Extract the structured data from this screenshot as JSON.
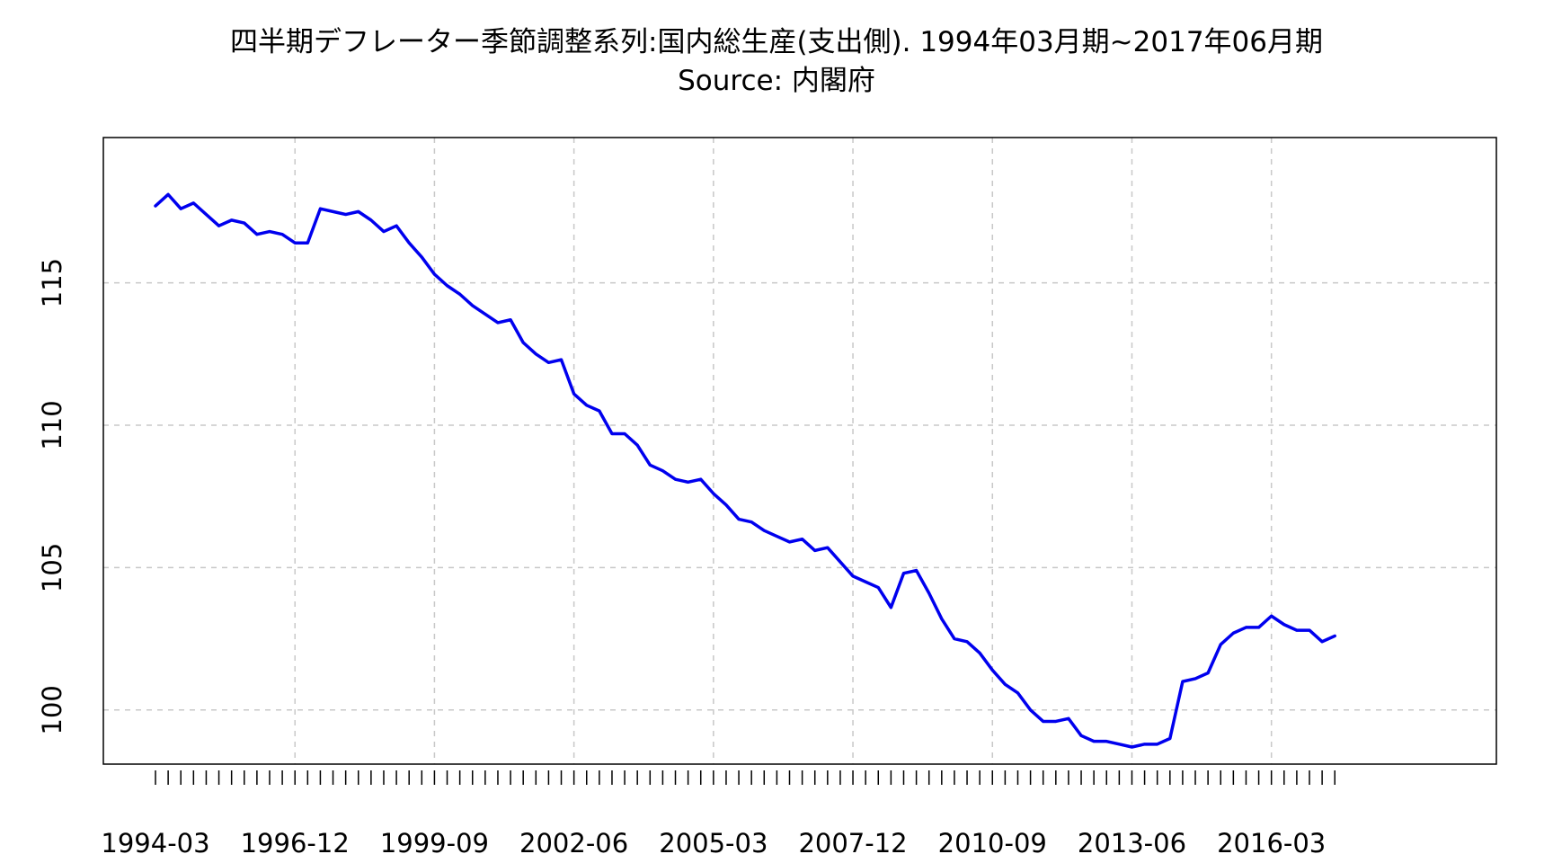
{
  "chart_data": {
    "type": "line",
    "title": "四半期デフレーター季節調整系列:国内総生産(支出側). 1994年03月期~2017年06月期",
    "subtitle": "Source: 内閣府",
    "xlabel": "",
    "ylabel": "",
    "ylim": [
      98.1,
      120.1
    ],
    "y_ticks": [
      100,
      105,
      110,
      115
    ],
    "x_ticks": [
      "1994-03",
      "1996-12",
      "1999-09",
      "2002-06",
      "2005-03",
      "2007-12",
      "2010-09",
      "2013-06",
      "2016-03"
    ],
    "grid": true,
    "legend": "none",
    "line_color": "#0000ee",
    "series": [
      {
        "x": [
          "1994-03",
          "1994-06",
          "1994-09",
          "1994-12",
          "1995-03",
          "1995-06",
          "1995-09",
          "1995-12",
          "1996-03",
          "1996-06",
          "1996-09",
          "1996-12",
          "1997-03",
          "1997-06",
          "1997-09",
          "1997-12",
          "1998-03",
          "1998-06",
          "1998-09",
          "1998-12",
          "1999-03",
          "1999-06",
          "1999-09",
          "1999-12",
          "2000-03",
          "2000-06",
          "2000-09",
          "2000-12",
          "2001-03",
          "2001-06",
          "2001-09",
          "2001-12",
          "2002-03",
          "2002-06",
          "2002-09",
          "2002-12",
          "2003-03",
          "2003-06",
          "2003-09",
          "2003-12",
          "2004-03",
          "2004-06",
          "2004-09",
          "2004-12",
          "2005-03",
          "2005-06",
          "2005-09",
          "2005-12",
          "2006-03",
          "2006-06",
          "2006-09",
          "2006-12",
          "2007-03",
          "2007-06",
          "2007-09",
          "2007-12",
          "2008-03",
          "2008-06",
          "2008-09",
          "2008-12",
          "2009-03",
          "2009-06",
          "2009-09",
          "2009-12",
          "2010-03",
          "2010-06",
          "2010-09",
          "2010-12",
          "2011-03",
          "2011-06",
          "2011-09",
          "2011-12",
          "2012-03",
          "2012-06",
          "2012-09",
          "2012-12",
          "2013-03",
          "2013-06",
          "2013-09",
          "2013-12",
          "2014-03",
          "2014-06",
          "2014-09",
          "2014-12",
          "2015-03",
          "2015-06",
          "2015-09",
          "2015-12",
          "2016-03",
          "2016-06",
          "2016-09",
          "2016-12",
          "2017-03",
          "2017-06"
        ],
        "values": [
          117.7,
          118.1,
          117.6,
          117.8,
          117.4,
          117.0,
          117.2,
          117.1,
          116.7,
          116.8,
          116.7,
          116.4,
          116.4,
          117.6,
          117.5,
          117.4,
          117.5,
          117.2,
          116.8,
          117.0,
          116.4,
          115.9,
          115.3,
          114.9,
          114.6,
          114.2,
          113.9,
          113.6,
          113.7,
          112.9,
          112.5,
          112.2,
          112.3,
          111.1,
          110.7,
          110.5,
          109.7,
          109.7,
          109.3,
          108.6,
          108.4,
          108.1,
          108.0,
          108.1,
          107.6,
          107.2,
          106.7,
          106.6,
          106.3,
          106.1,
          105.9,
          106.0,
          105.6,
          105.7,
          105.2,
          104.7,
          104.5,
          104.3,
          103.6,
          104.8,
          104.9,
          104.1,
          103.2,
          102.5,
          102.4,
          102.0,
          101.4,
          100.9,
          100.6,
          100.0,
          99.6,
          99.6,
          99.7,
          99.1,
          98.9,
          98.9,
          98.8,
          98.7,
          98.8,
          98.8,
          99.0,
          101.0,
          101.1,
          101.3,
          102.3,
          102.7,
          102.9,
          102.9,
          103.3,
          103.0,
          102.8,
          102.8,
          102.4,
          102.6
        ]
      }
    ]
  }
}
